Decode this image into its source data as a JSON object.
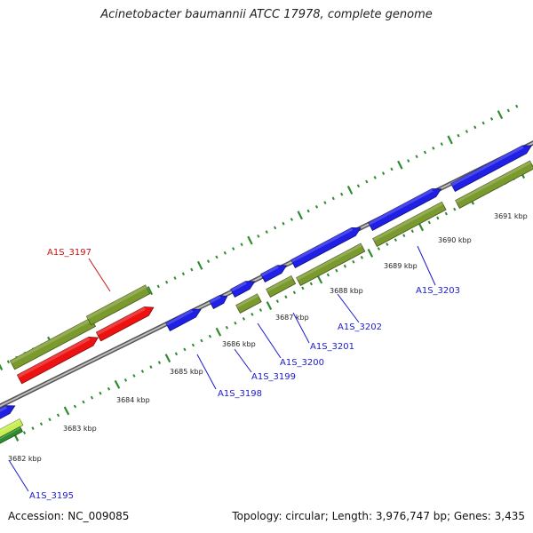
{
  "title": "Acinetobacter baumannii ATCC 17978, complete genome",
  "footer": {
    "accession": "Accession: NC_009085",
    "summary": "Topology: circular; Length: 3,976,747 bp; Genes: 3,435"
  },
  "colors": {
    "backbone": "#8a8a8a",
    "tick": "#2e8b2e",
    "cds": "#1f1fe6",
    "gene": "#7b9a2e",
    "pseudo_rna": "#ee1111",
    "other_feature": "#c8ef50",
    "label_blue": "#1a1acc",
    "label_red": "#cc1111"
  },
  "coordinates": {
    "kbp_labels": [
      "3682 kbp",
      "3683 kbp",
      "3684 kbp",
      "3685 kbp",
      "3686 kbp",
      "3687 kbp",
      "3688 kbp",
      "3689 kbp",
      "3690 kbp",
      "3691 kbp"
    ]
  },
  "feature_labels": [
    "A1S_3195",
    "A1S_3197",
    "A1S_3198",
    "A1S_3199",
    "A1S_3200",
    "A1S_3201",
    "A1S_3202",
    "A1S_3203"
  ]
}
